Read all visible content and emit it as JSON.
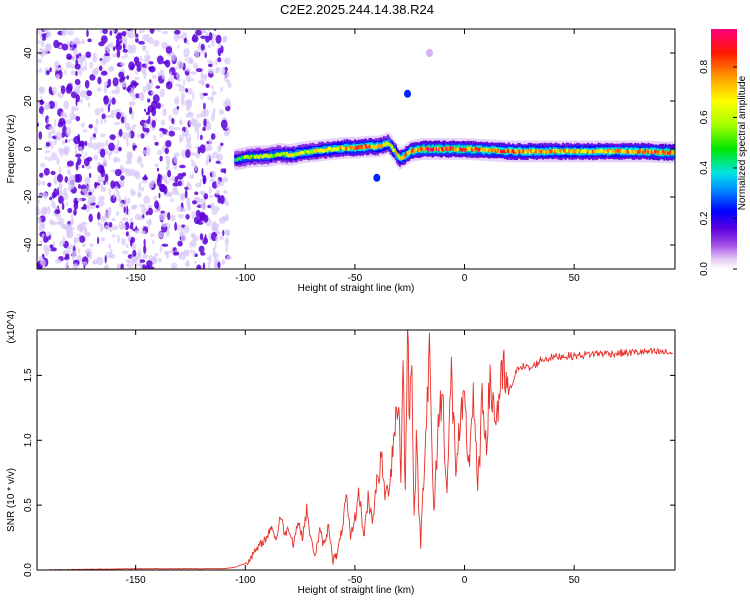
{
  "title": "C2E2.2025.244.14.38.R24",
  "colors": {
    "snr_line": "#e8302a",
    "speckle_dark": "#5a00d8",
    "speckle_light": "#d7c8f6",
    "axis": "#000000"
  },
  "chart_data": [
    {
      "type": "heatmap",
      "title": "C2E2.2025.244.14.38.R24",
      "xlabel": "Height of straight line (km)",
      "ylabel": "Frequency (Hz)",
      "xlim": [
        -195,
        96
      ],
      "ylim": [
        -50,
        50
      ],
      "xticks": [
        -150,
        -100,
        -50,
        0,
        50
      ],
      "xtick_labels": [
        "-150",
        "-100",
        "-50",
        "0",
        "50"
      ],
      "yticks": [
        -40,
        -20,
        0,
        20,
        40
      ],
      "ytick_labels": [
        "-40",
        "-20",
        "0",
        "20",
        "40"
      ],
      "colorbar": {
        "label": "Normalized spectral amplitude",
        "range": [
          0,
          0.95
        ],
        "ticks": [
          0.0,
          0.2,
          0.4,
          0.6,
          0.8
        ],
        "tick_labels": [
          "0.0",
          "0.2",
          "0.4",
          "0.6",
          "0.8"
        ]
      },
      "noise_region": {
        "x_range": [
          -195,
          -107
        ],
        "y_range": [
          -50,
          50
        ],
        "amplitude": 0.05
      },
      "ridge": {
        "x": [
          -105,
          -100,
          -95,
          -90,
          -85,
          -80,
          -75,
          -70,
          -65,
          -60,
          -55,
          -50,
          -45,
          -40,
          -35,
          -30,
          -28,
          -25,
          -20,
          -10,
          0,
          10,
          20,
          40,
          60,
          80,
          95
        ],
        "frequency": [
          -4.5,
          -3.5,
          -3.0,
          -3.0,
          -2.0,
          -2.5,
          -1.5,
          -1.0,
          -0.5,
          0.0,
          0.5,
          0.5,
          1.0,
          1.0,
          2.5,
          -4.0,
          -3.0,
          -1.0,
          0.0,
          0.0,
          0.0,
          -0.5,
          -1.0,
          -1.0,
          -1.0,
          -1.0,
          -1.5
        ],
        "peak_amplitude": [
          0.5,
          0.6,
          0.6,
          0.65,
          0.6,
          0.7,
          0.7,
          0.7,
          0.75,
          0.75,
          0.8,
          0.85,
          0.85,
          0.8,
          0.7,
          0.75,
          0.8,
          0.85,
          0.9,
          0.9,
          0.9,
          0.85,
          0.85,
          0.8,
          0.8,
          0.85,
          0.9
        ]
      },
      "isolated_features": [
        {
          "x": -26,
          "frequency": 23,
          "amplitude": 0.25
        },
        {
          "x": -40,
          "frequency": -12,
          "amplitude": 0.25
        },
        {
          "x": -16,
          "frequency": 40,
          "amplitude": 0.05
        }
      ]
    },
    {
      "type": "line",
      "xlabel": "Height of straight line (km)",
      "ylabel": "SNR (10 * v/v)",
      "y_multiplier": "(x10^4)",
      "xlim": [
        -195,
        96
      ],
      "ylim": [
        0,
        1.85
      ],
      "xticks": [
        -150,
        -100,
        -50,
        0,
        50
      ],
      "xtick_labels": [
        "-150",
        "-100",
        "-50",
        "0",
        "50"
      ],
      "yticks": [
        0.0,
        0.5,
        1.0,
        1.5
      ],
      "ytick_labels": [
        "0.0",
        "0.5",
        "1.0",
        "1.5"
      ],
      "series": [
        {
          "name": "SNR",
          "x": [
            -195,
            -150,
            -110,
            -105,
            -100,
            -98,
            -95,
            -92,
            -90,
            -88,
            -86,
            -84,
            -82,
            -80,
            -78,
            -76,
            -74,
            -72,
            -70,
            -68,
            -66,
            -64,
            -62,
            -60,
            -58,
            -56,
            -54,
            -52,
            -50,
            -48,
            -46,
            -44,
            -42,
            -40,
            -38,
            -36,
            -34,
            -32,
            -30,
            -29,
            -28,
            -27,
            -26,
            -25,
            -24,
            -23,
            -22,
            -20,
            -18,
            -16,
            -14,
            -12,
            -10,
            -8,
            -6,
            -4,
            -2,
            0,
            2,
            4,
            6,
            8,
            10,
            12,
            14,
            16,
            18,
            20,
            22,
            25,
            30,
            35,
            40,
            45,
            50,
            55,
            60,
            70,
            80,
            90,
            95
          ],
          "values": [
            0.0,
            0.01,
            0.01,
            0.02,
            0.05,
            0.09,
            0.15,
            0.22,
            0.25,
            0.35,
            0.22,
            0.42,
            0.28,
            0.32,
            0.2,
            0.38,
            0.25,
            0.46,
            0.22,
            0.12,
            0.3,
            0.18,
            0.35,
            0.08,
            0.12,
            0.3,
            0.55,
            0.25,
            0.4,
            0.6,
            0.25,
            0.55,
            0.4,
            0.65,
            0.85,
            0.55,
            0.7,
            1.1,
            1.3,
            0.75,
            1.55,
            0.6,
            1.8,
            1.2,
            1.7,
            0.4,
            0.95,
            0.2,
            1.0,
            1.65,
            0.4,
            1.15,
            1.35,
            0.6,
            1.5,
            0.8,
            1.1,
            1.25,
            0.8,
            1.4,
            0.6,
            1.25,
            1.05,
            1.45,
            1.15,
            1.35,
            1.5,
            1.35,
            1.45,
            1.58,
            1.55,
            1.62,
            1.64,
            1.65,
            1.65,
            1.66,
            1.67,
            1.67,
            1.68,
            1.68,
            1.67
          ]
        }
      ]
    }
  ]
}
